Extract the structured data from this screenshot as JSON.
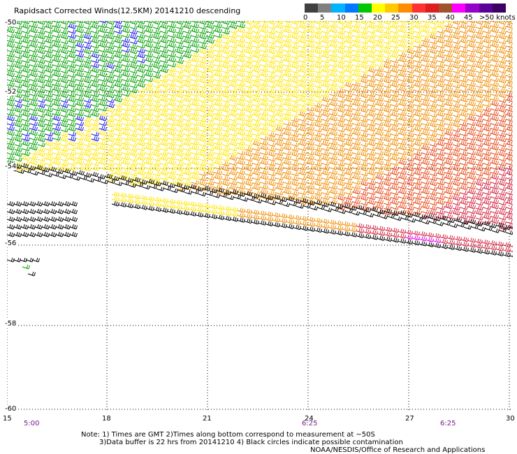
{
  "title": "Rapidsact Corrected Winds(12.5KM) 20141210 descending",
  "legend": {
    "ticks": [
      "0",
      "5",
      "10",
      "15",
      "20",
      "25",
      "30",
      "35",
      "40",
      "45",
      ">50 knots"
    ],
    "colors": [
      "#404040",
      "#808080",
      "#00b4ff",
      "#0078ff",
      "#00c800",
      "#ffff00",
      "#ffc800",
      "#ff8c00",
      "#ff3232",
      "#dc1e1e",
      "#a0522d",
      "#ff00ff",
      "#9600c8",
      "#5a0096",
      "#3c0064"
    ]
  },
  "colors": {
    "blue": "#1414e6",
    "green": "#00a000",
    "yellow": "#ffe600",
    "orange": "#f08c00",
    "red_orange": "#e64614",
    "red": "#d21e3c",
    "magenta": "#e600e6",
    "black": "#000000"
  },
  "axes": {
    "lat_labels": [
      "-50",
      "-52",
      "-54",
      "-56",
      "-58",
      "-60"
    ],
    "lon_labels": [
      "15",
      "18",
      "21",
      "24",
      "27",
      "30"
    ],
    "time_labels": [
      "5:00",
      "6:25",
      "6:25"
    ],
    "lat_range": [
      -50,
      -60
    ],
    "lon_range": [
      15,
      30
    ],
    "grid": "dotted"
  },
  "notes": {
    "line1": "Note: 1) Times are GMT 2)Times along bottom correspond to measurement at ~50S",
    "line2": "3)Data buffer is 22 hrs from 20141210 4) Black circles indicate possible contamination",
    "credit": "NOAA/NESDIS/Office of Research and Applications"
  }
}
